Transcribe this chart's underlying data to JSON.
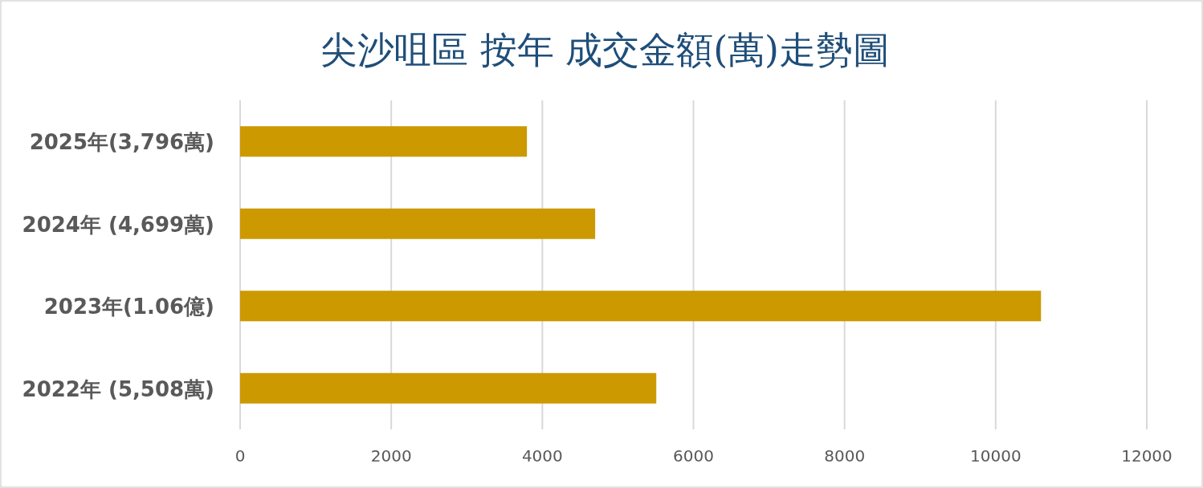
{
  "chart_data": {
    "type": "bar",
    "orientation": "horizontal",
    "title": "尖沙咀區  按年 成交金額(萬)走勢圖",
    "categories": [
      "2025年(3,796萬)",
      "2024年 (4,699萬)",
      "2023年(1.06億)",
      "2022年 (5,508萬)"
    ],
    "values": [
      3796,
      4699,
      10600,
      5508
    ],
    "color": "#cc9900",
    "xlim": [
      0,
      12000
    ],
    "xticks": [
      0,
      2000,
      4000,
      6000,
      8000,
      10000,
      12000
    ],
    "grid": "x"
  }
}
